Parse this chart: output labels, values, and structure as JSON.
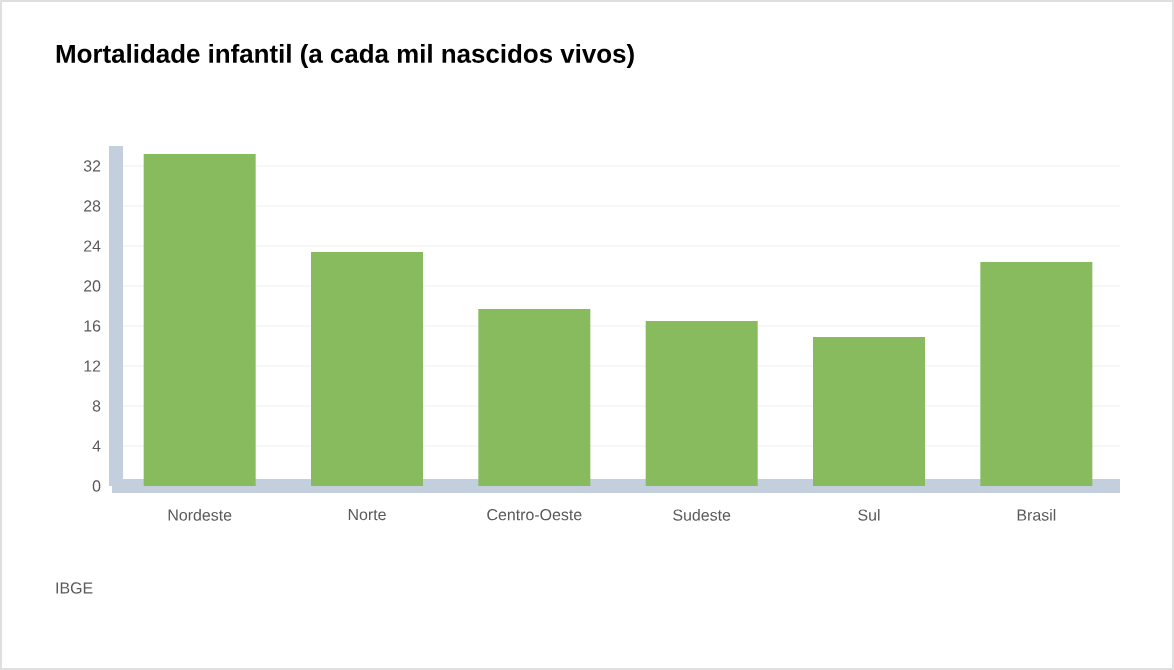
{
  "chart_data": {
    "type": "bar",
    "title": "Mortalidade infantil (a cada mil nascidos vivos)",
    "categories": [
      "Nordeste",
      "Norte",
      "Centro-Oeste",
      "Sudeste",
      "Sul",
      "Brasil"
    ],
    "values": [
      33.2,
      23.4,
      17.7,
      16.5,
      14.9,
      22.4
    ],
    "color": "#88bb5e",
    "ylim": [
      0,
      34
    ],
    "yticks": [
      0,
      4,
      8,
      12,
      16,
      20,
      24,
      28,
      32
    ],
    "grid": "y",
    "annotations": [
      "IBGE"
    ]
  }
}
